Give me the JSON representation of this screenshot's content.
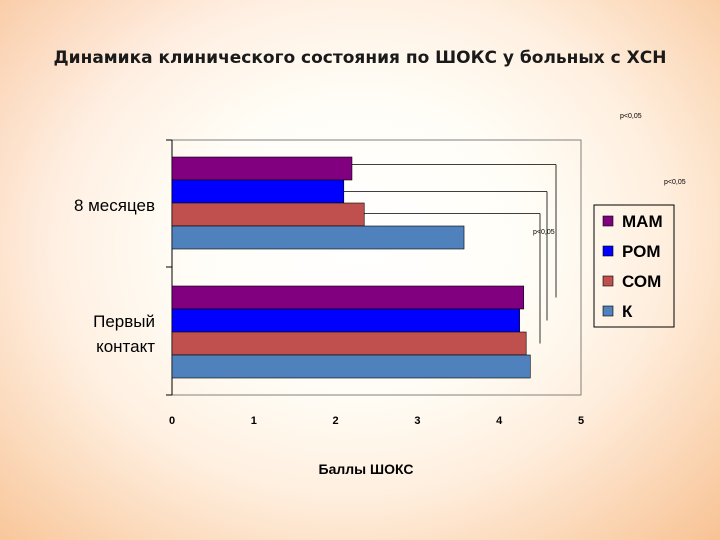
{
  "slide": {
    "title": "Динамика клинического состояния по ШОКС у больных с ХСН"
  },
  "chart_data": {
    "type": "bar",
    "orientation": "horizontal",
    "title": "",
    "xlabel": "Баллы ШОКС",
    "ylabel": "",
    "xlim": [
      0,
      5
    ],
    "x_ticks": [
      "0",
      "1",
      "2",
      "3",
      "4",
      "5"
    ],
    "categories": [
      "8 месяцев",
      "Первый контакт"
    ],
    "series": [
      {
        "name": "МАМ",
        "color": "#800080",
        "values": [
          2.2,
          4.3
        ]
      },
      {
        "name": "РОМ",
        "color": "#0000ff",
        "values": [
          2.1,
          4.25
        ]
      },
      {
        "name": "СОМ",
        "color": "#c0504d",
        "values": [
          2.35,
          4.33
        ]
      },
      {
        "name": "К",
        "color": "#4f81bd",
        "values": [
          3.57,
          4.38
        ]
      }
    ],
    "legend_position": "right",
    "grid": false,
    "annotations": [
      "p<0,05",
      "p<0,05",
      "p<0,05"
    ]
  }
}
